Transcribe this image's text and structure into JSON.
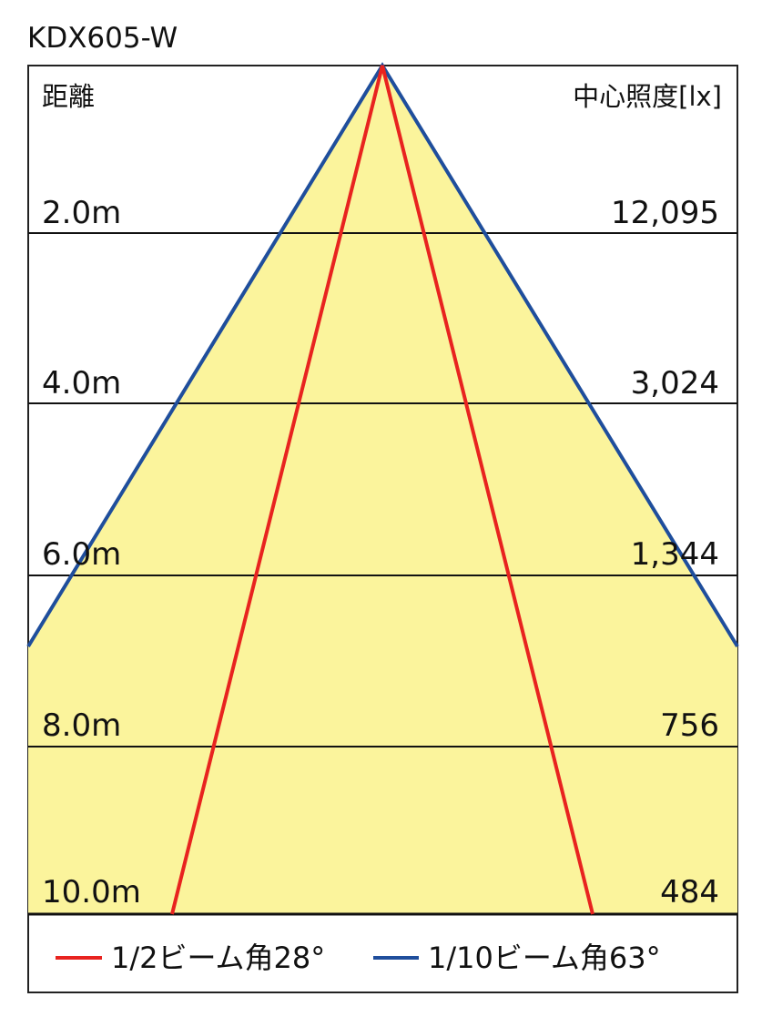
{
  "title": "KDX605-W",
  "left_header": "距離",
  "right_header": "中心照度[lx]",
  "rows": [
    {
      "distance": "2.0m",
      "illuminance": "12,095"
    },
    {
      "distance": "4.0m",
      "illuminance": "3,024"
    },
    {
      "distance": "6.0m",
      "illuminance": "1,344"
    },
    {
      "distance": "8.0m",
      "illuminance": "756"
    },
    {
      "distance": "10.0m",
      "illuminance": "484"
    }
  ],
  "legend": [
    {
      "label": "1/2ビーム角28°",
      "color": "#e8231f"
    },
    {
      "label": "1/10ビーム角63°",
      "color": "#1f4e9c"
    }
  ],
  "colors": {
    "fill": "#fbf49c",
    "half_beam": "#e8231f",
    "tenth_beam": "#1f4e9c"
  }
}
